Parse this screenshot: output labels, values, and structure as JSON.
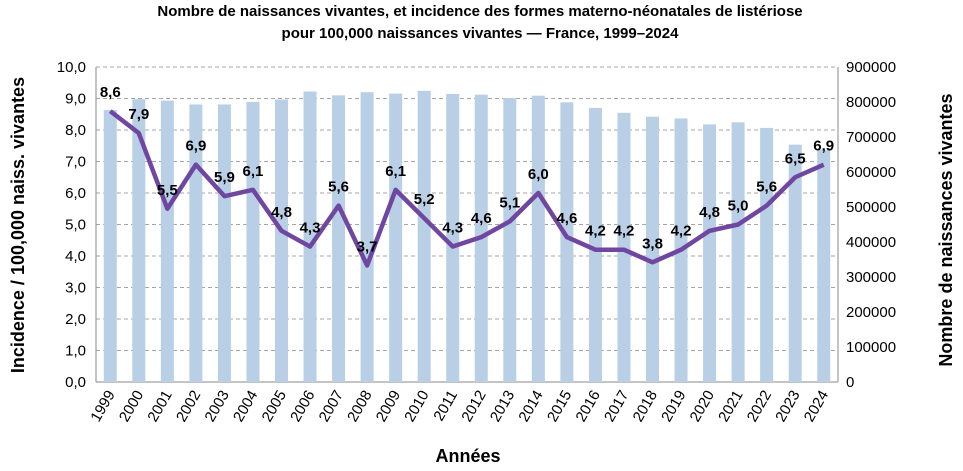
{
  "chart_data": {
    "type": "bar+line",
    "title": "Nombre de naissances vivantes, et incidence des formes materno-néonatales de listériose",
    "subtitle": "pour 100,000 naissances vivantes — France, 1999–2024",
    "xlabel": "Années",
    "ylabel": "Incidence / 100,000 naiss. vivantes",
    "y2label": "Nombre de naissances vivantes",
    "ylim": [
      0,
      10
    ],
    "y2lim": [
      0,
      900000
    ],
    "yticks": [
      "0,0",
      "1,0",
      "2,0",
      "3,0",
      "4,0",
      "5,0",
      "6,0",
      "7,0",
      "8,0",
      "9,0",
      "10,0"
    ],
    "y2ticks": [
      "0",
      "100000",
      "200000",
      "300000",
      "400000",
      "500000",
      "600000",
      "700000",
      "800000",
      "900000"
    ],
    "grid": true,
    "categories": [
      "1999",
      "2000",
      "2001",
      "2002",
      "2003",
      "2004",
      "2005",
      "2006",
      "2007",
      "2008",
      "2009",
      "2010",
      "2011",
      "2012",
      "2013",
      "2014",
      "2015",
      "2016",
      "2017",
      "2018",
      "2019",
      "2020",
      "2021",
      "2022",
      "2023",
      "2024"
    ],
    "series": [
      {
        "type": "bar",
        "axis": "right",
        "color": "#b8cfe6",
        "values": [
          777000,
          808000,
          804000,
          793000,
          793000,
          800000,
          807000,
          830000,
          819000,
          828000,
          824000,
          832000,
          823000,
          821000,
          811000,
          818000,
          799000,
          783000,
          769000,
          758000,
          753000,
          736000,
          742000,
          726000,
          678000,
          663000
        ]
      },
      {
        "type": "line",
        "axis": "left",
        "color": "#6f47a0",
        "values": [
          8.6,
          7.9,
          5.5,
          6.9,
          5.9,
          6.1,
          4.8,
          4.3,
          5.6,
          3.7,
          6.1,
          5.2,
          4.3,
          4.6,
          5.1,
          6.0,
          4.6,
          4.2,
          4.2,
          3.8,
          4.2,
          4.8,
          5.0,
          5.6,
          6.5,
          6.9
        ],
        "labels": [
          "8,6",
          "7,9",
          "5,5",
          "6,9",
          "5,9",
          "6,1",
          "4,8",
          "4,3",
          "5,6",
          "3,7",
          "6,1",
          "5,2",
          "4,3",
          "4,6",
          "5,1",
          "6,0",
          "4,6",
          "4,2",
          "4,2",
          "3,8",
          "4,2",
          "4,8",
          "5,0",
          "5,6",
          "6,5",
          "6,9"
        ]
      }
    ]
  }
}
